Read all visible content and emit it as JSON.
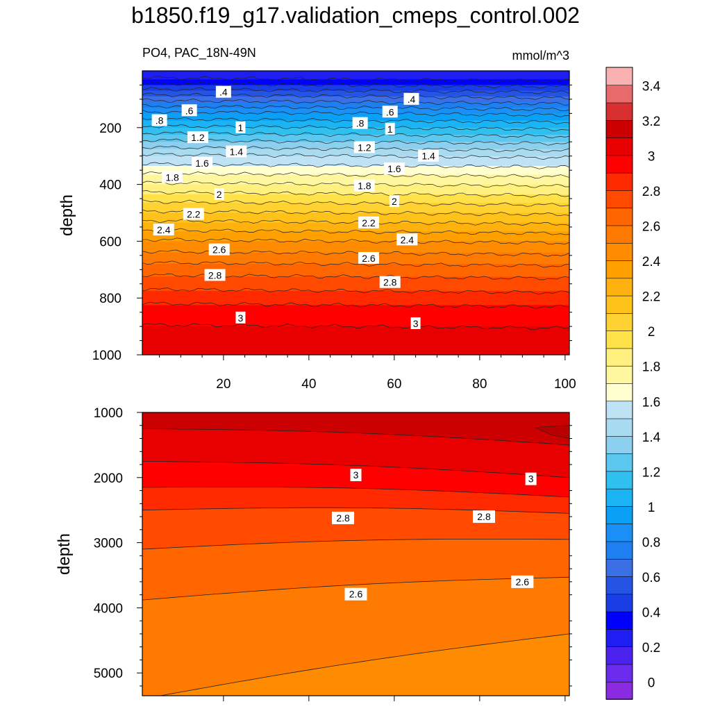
{
  "title": "b1850.f19_g17.validation_cmeps_control.002",
  "colors": {
    "levels": [
      "#8a2be2",
      "#6a2bed",
      "#4b22ee",
      "#1e1ef2",
      "#0000ff",
      "#1a3ee6",
      "#2554e4",
      "#3a6fe6",
      "#1e7ff0",
      "#1a8ff5",
      "#0aa0f5",
      "#1ab4f5",
      "#30c0f0",
      "#5cc8f0",
      "#8ccfee",
      "#a8daf0",
      "#bfe2f5",
      "#ffffd0",
      "#fff7a0",
      "#fff080",
      "#ffe24a",
      "#ffd233",
      "#ffc21a",
      "#ffb20f",
      "#ffa000",
      "#ff8c00",
      "#ff7a00",
      "#ff6600",
      "#ff4a00",
      "#ff2a00",
      "#ff0000",
      "#e80000",
      "#cc0000",
      "#d83030",
      "#e86a6a",
      "#f8b0b0"
    ],
    "contour_line": "#222222"
  },
  "chart_data": [
    {
      "type": "heatmap",
      "title": "",
      "subtitle_left": "PO4, PAC_18N-49N",
      "subtitle_right": "mmol/m^3",
      "xlabel": "",
      "ylabel": "depth",
      "xlim": [
        1,
        101
      ],
      "ylim": [
        1000,
        0
      ],
      "xticks": [
        20,
        40,
        60,
        80,
        100
      ],
      "yticks": [
        200,
        400,
        600,
        800,
        1000
      ],
      "depth_profile": {
        "depth": [
          0,
          30,
          60,
          100,
          150,
          200,
          250,
          300,
          350,
          400,
          450,
          500,
          550,
          600,
          650,
          700,
          750,
          800,
          850,
          900,
          950,
          1000
        ],
        "po4": [
          0.2,
          0.3,
          0.45,
          0.65,
          0.9,
          1.1,
          1.3,
          1.5,
          1.65,
          1.8,
          1.95,
          2.1,
          2.25,
          2.4,
          2.52,
          2.65,
          2.75,
          2.85,
          2.95,
          3.0,
          3.05,
          3.08
        ]
      },
      "contour_labels": [
        {
          "text": ".4",
          "x": 20,
          "depth": 75
        },
        {
          "text": ".4",
          "x": 64,
          "depth": 100
        },
        {
          "text": ".6",
          "x": 12,
          "depth": 140
        },
        {
          "text": ".6",
          "x": 59,
          "depth": 145
        },
        {
          "text": ".8",
          "x": 5,
          "depth": 175
        },
        {
          "text": ".8",
          "x": 52,
          "depth": 185
        },
        {
          "text": "1",
          "x": 24,
          "depth": 200
        },
        {
          "text": "1",
          "x": 59,
          "depth": 205
        },
        {
          "text": "1.2",
          "x": 14,
          "depth": 235
        },
        {
          "text": "1.2",
          "x": 53,
          "depth": 270
        },
        {
          "text": "1.4",
          "x": 23,
          "depth": 285
        },
        {
          "text": "1.4",
          "x": 68,
          "depth": 300
        },
        {
          "text": "1.6",
          "x": 15,
          "depth": 325
        },
        {
          "text": "1.6",
          "x": 60,
          "depth": 345
        },
        {
          "text": "1.8",
          "x": 8,
          "depth": 375
        },
        {
          "text": "1.8",
          "x": 53,
          "depth": 405
        },
        {
          "text": "2",
          "x": 19,
          "depth": 435
        },
        {
          "text": "2",
          "x": 60,
          "depth": 460
        },
        {
          "text": "2.2",
          "x": 13,
          "depth": 505
        },
        {
          "text": "2.2",
          "x": 54,
          "depth": 535
        },
        {
          "text": "2.4",
          "x": 6,
          "depth": 560
        },
        {
          "text": "2.4",
          "x": 63,
          "depth": 595
        },
        {
          "text": "2.6",
          "x": 19,
          "depth": 630
        },
        {
          "text": "2.6",
          "x": 54,
          "depth": 660
        },
        {
          "text": "2.8",
          "x": 18,
          "depth": 720
        },
        {
          "text": "2.8",
          "x": 59,
          "depth": 745
        },
        {
          "text": "3",
          "x": 24,
          "depth": 870
        },
        {
          "text": "3",
          "x": 65,
          "depth": 890
        }
      ]
    },
    {
      "type": "heatmap",
      "xlabel": "",
      "ylabel": "depth",
      "xlim": [
        1,
        101
      ],
      "ylim": [
        5350,
        1000
      ],
      "xticks": [
        20,
        40,
        60,
        80,
        100
      ],
      "yticks": [
        1000,
        2000,
        3000,
        4000,
        5000
      ],
      "bands": [
        {
          "level": 3.2,
          "color": "#cc0000"
        },
        {
          "level": 3.0,
          "color": "#e80000"
        },
        {
          "level": 2.9,
          "color": "#ff0000"
        },
        {
          "level": 2.8,
          "color": "#ff2a00"
        },
        {
          "level": 2.7,
          "color": "#ff4a00"
        },
        {
          "level": 2.6,
          "color": "#ff6600"
        },
        {
          "level": 2.5,
          "color": "#ff7a00"
        },
        {
          "level": 2.4,
          "color": "#ff8c00"
        }
      ],
      "contour_labels": [
        {
          "text": "3",
          "x": 51,
          "depth": 1960
        },
        {
          "text": "3",
          "x": 92,
          "depth": 2020
        },
        {
          "text": "2.8",
          "x": 48,
          "depth": 2620
        },
        {
          "text": "2.8",
          "x": 81,
          "depth": 2600
        },
        {
          "text": "2.6",
          "x": 51,
          "depth": 3790
        },
        {
          "text": "2.6",
          "x": 90,
          "depth": 3600
        }
      ]
    }
  ],
  "colorbar": {
    "labels": [
      "3.4",
      "3.2",
      "3",
      "2.8",
      "2.6",
      "2.4",
      "2.2",
      "2",
      "1.8",
      "1.6",
      "1.4",
      "1.2",
      "1",
      "0.8",
      "0.6",
      "0.4",
      "0.2",
      "0"
    ]
  }
}
